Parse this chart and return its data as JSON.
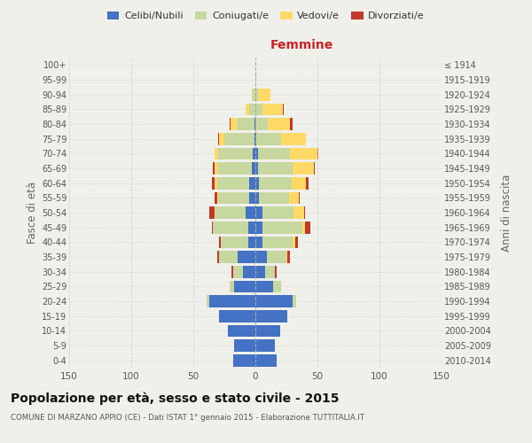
{
  "age_groups": [
    "0-4",
    "5-9",
    "10-14",
    "15-19",
    "20-24",
    "25-29",
    "30-34",
    "35-39",
    "40-44",
    "45-49",
    "50-54",
    "55-59",
    "60-64",
    "65-69",
    "70-74",
    "75-79",
    "80-84",
    "85-89",
    "90-94",
    "95-99",
    "100+"
  ],
  "birth_years": [
    "2010-2014",
    "2005-2009",
    "2000-2004",
    "1995-1999",
    "1990-1994",
    "1985-1989",
    "1980-1984",
    "1975-1979",
    "1970-1974",
    "1965-1969",
    "1960-1964",
    "1955-1959",
    "1950-1954",
    "1945-1949",
    "1940-1944",
    "1935-1939",
    "1930-1934",
    "1925-1929",
    "1920-1924",
    "1915-1919",
    "≤ 1914"
  ],
  "males": {
    "celibi": [
      18,
      17,
      22,
      29,
      37,
      17,
      10,
      14,
      6,
      6,
      8,
      5,
      5,
      3,
      2,
      1,
      1,
      0,
      0,
      0,
      0
    ],
    "coniugati": [
      0,
      0,
      0,
      0,
      2,
      4,
      8,
      15,
      22,
      28,
      24,
      25,
      26,
      27,
      28,
      24,
      14,
      5,
      2,
      0,
      0
    ],
    "vedovi": [
      0,
      0,
      0,
      0,
      0,
      0,
      0,
      0,
      0,
      0,
      1,
      1,
      2,
      3,
      3,
      4,
      5,
      3,
      1,
      0,
      0
    ],
    "divorziati": [
      0,
      0,
      0,
      0,
      0,
      0,
      1,
      2,
      1,
      1,
      4,
      2,
      2,
      1,
      0,
      1,
      1,
      0,
      0,
      0,
      0
    ]
  },
  "females": {
    "nubili": [
      17,
      16,
      20,
      26,
      30,
      14,
      8,
      9,
      6,
      6,
      6,
      3,
      3,
      2,
      2,
      1,
      0,
      0,
      0,
      0,
      0
    ],
    "coniugate": [
      0,
      0,
      0,
      0,
      3,
      7,
      8,
      16,
      24,
      32,
      25,
      24,
      26,
      28,
      26,
      20,
      10,
      6,
      2,
      0,
      0
    ],
    "vedove": [
      0,
      0,
      0,
      0,
      0,
      0,
      0,
      1,
      2,
      2,
      8,
      8,
      12,
      17,
      22,
      20,
      18,
      16,
      10,
      1,
      0
    ],
    "divorziate": [
      0,
      0,
      0,
      0,
      0,
      0,
      1,
      2,
      2,
      4,
      1,
      1,
      2,
      1,
      1,
      0,
      2,
      1,
      0,
      0,
      0
    ]
  },
  "color_celibi": "#4472c4",
  "color_coniugati": "#c6d89f",
  "color_vedovi": "#ffd966",
  "color_divorziati": "#c0392b",
  "xlim": 150,
  "title": "Popolazione per età, sesso e stato civile - 2015",
  "subtitle": "COMUNE DI MARZANO APPIO (CE) - Dati ISTAT 1° gennaio 2015 - Elaborazione TUTTITALIA.IT",
  "ylabel_left": "Fasce di età",
  "ylabel_right": "Anni di nascita",
  "xlabel_right": "Femmine",
  "bg_color": "#f0f0eb",
  "grid_color": "#cccccc"
}
